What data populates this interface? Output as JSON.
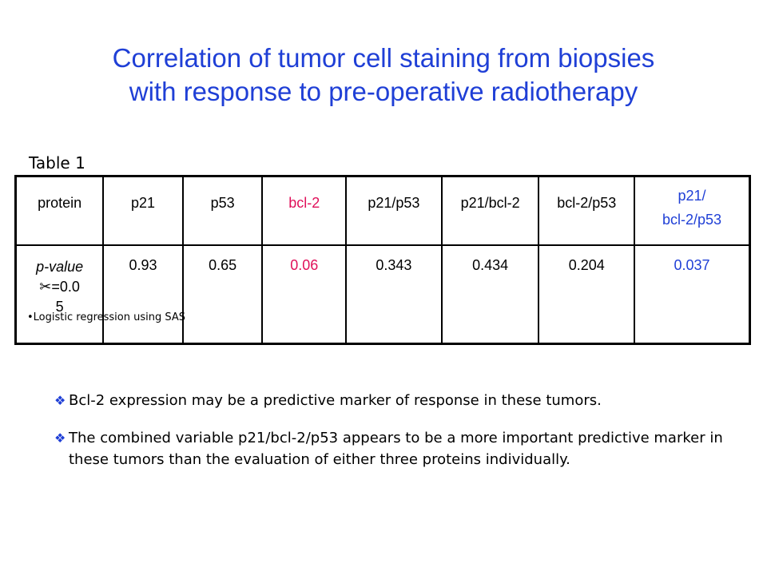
{
  "title": {
    "line1": "Correlation of tumor cell staining from biopsies",
    "line2": "with response to pre-operative radiotherapy"
  },
  "table_label": "Table 1",
  "table": {
    "header": {
      "protein": "protein",
      "p21": "p21",
      "p53": "p53",
      "bcl2": "bcl-2",
      "p21_p53": "p21/p53",
      "p21_bcl2": "p21/bcl-2",
      "bcl2_p53": "bcl-2/p53",
      "combined_line1": "p21/",
      "combined_line2": "bcl-2/p53"
    },
    "values": {
      "label_line1": "p-value",
      "label_line2": "=0.0",
      "label_line3": "5",
      "alpha_symbol": "✂",
      "p21": "0.93",
      "p53": "0.65",
      "bcl2": "0.06",
      "p21_p53": "0.343",
      "p21_bcl2": "0.434",
      "bcl2_p53": "0.204",
      "combined": "0.037"
    }
  },
  "footnote": "•Logistic regression using SAS",
  "bullets": [
    "Bcl-2 expression may be a predictive marker of response in these tumors.",
    "The combined variable p21/bcl-2/p53 appears to be a more important predictive marker in these tumors than the evaluation of either three proteins individually."
  ],
  "bullet_symbol": "❖",
  "colors": {
    "title": "#1f3fd6",
    "highlight_red": "#e0105a",
    "highlight_blue": "#1f3fd6"
  }
}
